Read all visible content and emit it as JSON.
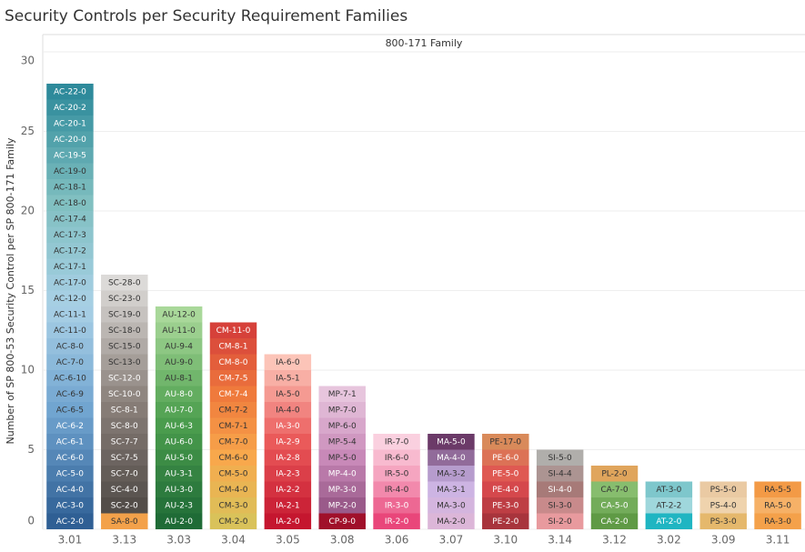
{
  "chart_data": {
    "type": "stacked_bar",
    "title": "Security Controls per Security Requirement Families",
    "x_label": "800-171 Family",
    "y_label": "Number of SP 800-53 Security Control per SP 800-171 Family",
    "ylim": [
      0,
      30
    ],
    "yticks": [
      0,
      5,
      10,
      15,
      20,
      25,
      30
    ],
    "grid": true,
    "bars": [
      {
        "category": "3.01",
        "colors": [
          "#2f5f94",
          "#6fa3cf",
          "#a9d0e6",
          "#7fbfc0",
          "#2e8a9b"
        ],
        "segments": [
          {
            "label": "AC-2-0",
            "value": 1
          },
          {
            "label": "AC-3-0",
            "value": 1
          },
          {
            "label": "AC-4-0",
            "value": 1
          },
          {
            "label": "AC-5-0",
            "value": 1
          },
          {
            "label": "AC-6-0",
            "value": 1
          },
          {
            "label": "AC-6-1",
            "value": 1
          },
          {
            "label": "AC-6-2",
            "value": 1
          },
          {
            "label": "AC-6-5",
            "value": 1
          },
          {
            "label": "AC-6-9",
            "value": 1
          },
          {
            "label": "AC-6-10",
            "value": 1
          },
          {
            "label": "AC-7-0",
            "value": 1
          },
          {
            "label": "AC-8-0",
            "value": 1
          },
          {
            "label": "AC-11-0",
            "value": 1
          },
          {
            "label": "AC-11-1",
            "value": 1
          },
          {
            "label": "AC-12-0",
            "value": 1
          },
          {
            "label": "AC-17-0",
            "value": 1
          },
          {
            "label": "AC-17-1",
            "value": 1
          },
          {
            "label": "AC-17-2",
            "value": 1
          },
          {
            "label": "AC-17-3",
            "value": 1
          },
          {
            "label": "AC-17-4",
            "value": 1
          },
          {
            "label": "AC-18-0",
            "value": 1
          },
          {
            "label": "AC-18-1",
            "value": 1
          },
          {
            "label": "AC-19-0",
            "value": 1
          },
          {
            "label": "AC-19-5",
            "value": 1
          },
          {
            "label": "AC-20-0",
            "value": 1
          },
          {
            "label": "AC-20-1",
            "value": 1
          },
          {
            "label": "AC-20-2",
            "value": 1
          },
          {
            "label": "AC-22-0",
            "value": 1
          }
        ]
      },
      {
        "category": "3.13",
        "colors": [
          "#4a4542",
          "#8a807a",
          "#dcdad8"
        ],
        "segments": [
          {
            "label": "SA-8-0",
            "value": 1,
            "color": "#f3a14a"
          },
          {
            "label": "SC-2-0",
            "value": 1
          },
          {
            "label": "SC-4-0",
            "value": 1
          },
          {
            "label": "SC-7-0",
            "value": 1
          },
          {
            "label": "SC-7-5",
            "value": 1
          },
          {
            "label": "SC-7-7",
            "value": 1
          },
          {
            "label": "SC-8-0",
            "value": 1
          },
          {
            "label": "SC-8-1",
            "value": 1
          },
          {
            "label": "SC-10-0",
            "value": 1
          },
          {
            "label": "SC-12-0",
            "value": 1
          },
          {
            "label": "SC-13-0",
            "value": 1
          },
          {
            "label": "SC-15-0",
            "value": 1
          },
          {
            "label": "SC-18-0",
            "value": 1
          },
          {
            "label": "SC-19-0",
            "value": 1
          },
          {
            "label": "SC-23-0",
            "value": 1
          },
          {
            "label": "SC-28-0",
            "value": 1
          }
        ]
      },
      {
        "category": "3.03",
        "colors": [
          "#1f6b36",
          "#4ea04f",
          "#a9d89a"
        ],
        "segments": [
          {
            "label": "AU-2-0",
            "value": 1
          },
          {
            "label": "AU-2-3",
            "value": 1
          },
          {
            "label": "AU-3-0",
            "value": 1
          },
          {
            "label": "AU-3-1",
            "value": 1
          },
          {
            "label": "AU-5-0",
            "value": 1
          },
          {
            "label": "AU-6-0",
            "value": 1
          },
          {
            "label": "AU-6-3",
            "value": 1
          },
          {
            "label": "AU-7-0",
            "value": 1
          },
          {
            "label": "AU-8-0",
            "value": 1
          },
          {
            "label": "AU-8-1",
            "value": 1
          },
          {
            "label": "AU-9-0",
            "value": 1
          },
          {
            "label": "AU-9-4",
            "value": 1
          },
          {
            "label": "AU-11-0",
            "value": 1
          },
          {
            "label": "AU-12-0",
            "value": 1
          }
        ]
      },
      {
        "category": "3.04",
        "colors": [
          "#d9c25a",
          "#f8a84c",
          "#ef7a3c",
          "#d6413a"
        ],
        "segments": [
          {
            "label": "CM-2-0",
            "value": 1
          },
          {
            "label": "CM-3-0",
            "value": 1
          },
          {
            "label": "CM-4-0",
            "value": 1
          },
          {
            "label": "CM-5-0",
            "value": 1
          },
          {
            "label": "CM-6-0",
            "value": 1
          },
          {
            "label": "CM-7-0",
            "value": 1
          },
          {
            "label": "CM-7-1",
            "value": 1
          },
          {
            "label": "CM-7-2",
            "value": 1
          },
          {
            "label": "CM-7-4",
            "value": 1
          },
          {
            "label": "CM-7-5",
            "value": 1
          },
          {
            "label": "CM-8-0",
            "value": 1
          },
          {
            "label": "CM-8-1",
            "value": 1
          },
          {
            "label": "CM-11-0",
            "value": 1
          }
        ]
      },
      {
        "category": "3.05",
        "colors": [
          "#c5162f",
          "#ea5a5a",
          "#fcc4b8"
        ],
        "segments": [
          {
            "label": "IA-2-0",
            "value": 1
          },
          {
            "label": "IA-2-1",
            "value": 1
          },
          {
            "label": "IA-2-2",
            "value": 1
          },
          {
            "label": "IA-2-3",
            "value": 1
          },
          {
            "label": "IA-2-8",
            "value": 1
          },
          {
            "label": "IA-2-9",
            "value": 1
          },
          {
            "label": "IA-3-0",
            "value": 1
          },
          {
            "label": "IA-4-0",
            "value": 1
          },
          {
            "label": "IA-5-0",
            "value": 1
          },
          {
            "label": "IA-5-1",
            "value": 1
          },
          {
            "label": "IA-6-0",
            "value": 1
          }
        ]
      },
      {
        "category": "3.08",
        "colors": [
          "#8a4a7a",
          "#c889b8",
          "#e7c5dd"
        ],
        "segments": [
          {
            "label": "CP-9-0",
            "value": 1,
            "color": "#a0102a"
          },
          {
            "label": "MP-2-0",
            "value": 1
          },
          {
            "label": "MP-3-0",
            "value": 1
          },
          {
            "label": "MP-4-0",
            "value": 1
          },
          {
            "label": "MP-5-0",
            "value": 1
          },
          {
            "label": "MP-5-4",
            "value": 1
          },
          {
            "label": "MP-6-0",
            "value": 1
          },
          {
            "label": "MP-7-0",
            "value": 1
          },
          {
            "label": "MP-7-1",
            "value": 1
          }
        ]
      },
      {
        "category": "3.06",
        "colors": [
          "#e9467a",
          "#f49ab8",
          "#fad0df"
        ],
        "segments": [
          {
            "label": "IR-2-0",
            "value": 1
          },
          {
            "label": "IR-3-0",
            "value": 1
          },
          {
            "label": "IR-4-0",
            "value": 1
          },
          {
            "label": "IR-5-0",
            "value": 1
          },
          {
            "label": "IR-6-0",
            "value": 1
          },
          {
            "label": "IR-7-0",
            "value": 1
          }
        ]
      },
      {
        "category": "3.07",
        "colors": [
          "#dcb6d8",
          "#c9b4e6",
          "#6b3a68"
        ],
        "segments": [
          {
            "label": "MA-2-0",
            "value": 1
          },
          {
            "label": "MA-3-0",
            "value": 1
          },
          {
            "label": "MA-3-1",
            "value": 1
          },
          {
            "label": "MA-3-2",
            "value": 1
          },
          {
            "label": "MA-4-0",
            "value": 1
          },
          {
            "label": "MA-5-0",
            "value": 1
          }
        ]
      },
      {
        "category": "3.10",
        "colors": [
          "#a8343c",
          "#e04d50",
          "#d98a5a"
        ],
        "segments": [
          {
            "label": "PE-2-0",
            "value": 1
          },
          {
            "label": "PE-3-0",
            "value": 1
          },
          {
            "label": "PE-4-0",
            "value": 1
          },
          {
            "label": "PE-5-0",
            "value": 1
          },
          {
            "label": "PE-6-0",
            "value": 1
          },
          {
            "label": "PE-17-0",
            "value": 1
          }
        ]
      },
      {
        "category": "3.14",
        "colors": [
          "#e89a9e",
          "#a77a78",
          "#b0aeab"
        ],
        "segments": [
          {
            "label": "SI-2-0",
            "value": 1
          },
          {
            "label": "SI-3-0",
            "value": 1
          },
          {
            "label": "SI-4-0",
            "value": 1
          },
          {
            "label": "SI-4-4",
            "value": 1
          },
          {
            "label": "SI-5-0",
            "value": 1
          }
        ]
      },
      {
        "category": "3.12",
        "colors": [
          "#5f9a45",
          "#9bcf83"
        ],
        "segments": [
          {
            "label": "CA-2-0",
            "value": 1
          },
          {
            "label": "CA-5-0",
            "value": 1
          },
          {
            "label": "CA-7-0",
            "value": 1
          },
          {
            "label": "PL-2-0",
            "value": 1,
            "color": "#e0a55c"
          }
        ]
      },
      {
        "category": "3.02",
        "colors": [
          "#1fb5c2",
          "#9fd7dc",
          "#7ec7cc"
        ],
        "segments": [
          {
            "label": "AT-2-0",
            "value": 1
          },
          {
            "label": "AT-2-2",
            "value": 1
          },
          {
            "label": "AT-3-0",
            "value": 1
          }
        ]
      },
      {
        "category": "3.09",
        "colors": [
          "#e5b86c",
          "#efd3ad",
          "#eacaa3"
        ],
        "segments": [
          {
            "label": "PS-3-0",
            "value": 1
          },
          {
            "label": "PS-4-0",
            "value": 1
          },
          {
            "label": "PS-5-0",
            "value": 1
          }
        ]
      },
      {
        "category": "3.11",
        "colors": [
          "#f4a14a",
          "#f6b167",
          "#f39a46"
        ],
        "segments": [
          {
            "label": "RA-3-0",
            "value": 1
          },
          {
            "label": "RA-5-0",
            "value": 1
          },
          {
            "label": "RA-5-5",
            "value": 1
          }
        ]
      }
    ]
  }
}
